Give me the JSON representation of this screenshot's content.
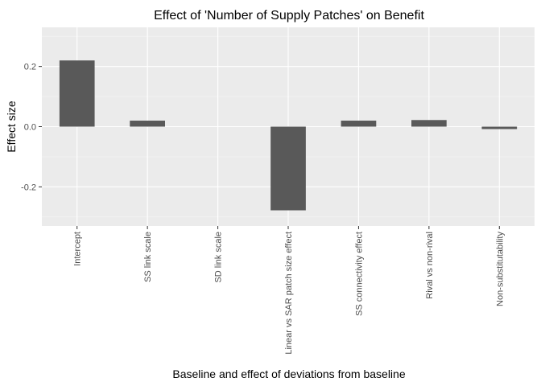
{
  "chart_data": {
    "type": "bar",
    "title": "Effect of 'Number of Supply Patches' on Benefit",
    "xlabel": "Baseline and effect of deviations from baseline",
    "ylabel": "Effect size",
    "categories": [
      "Intercept",
      "SS link scale",
      "SD link scale",
      "Linear vs SAR patch size effect",
      "SS connectivity effect",
      "Rival vs non-rival",
      "Non-substitutability"
    ],
    "values": [
      0.22,
      0.02,
      0.0,
      -0.278,
      0.02,
      0.022,
      -0.008
    ],
    "ylim": [
      -0.33,
      0.33
    ],
    "yticks": [
      -0.2,
      0.0,
      0.2
    ],
    "ytick_labels": [
      "-0.2",
      "0.0",
      "0.2"
    ],
    "grid": true,
    "legend": "none",
    "colors": {
      "bar": "#595959",
      "panel": "#ebebeb",
      "grid_major": "#ffffff",
      "grid_minor": "#f5f5f5",
      "tick_text": "#4d4d4d"
    }
  }
}
